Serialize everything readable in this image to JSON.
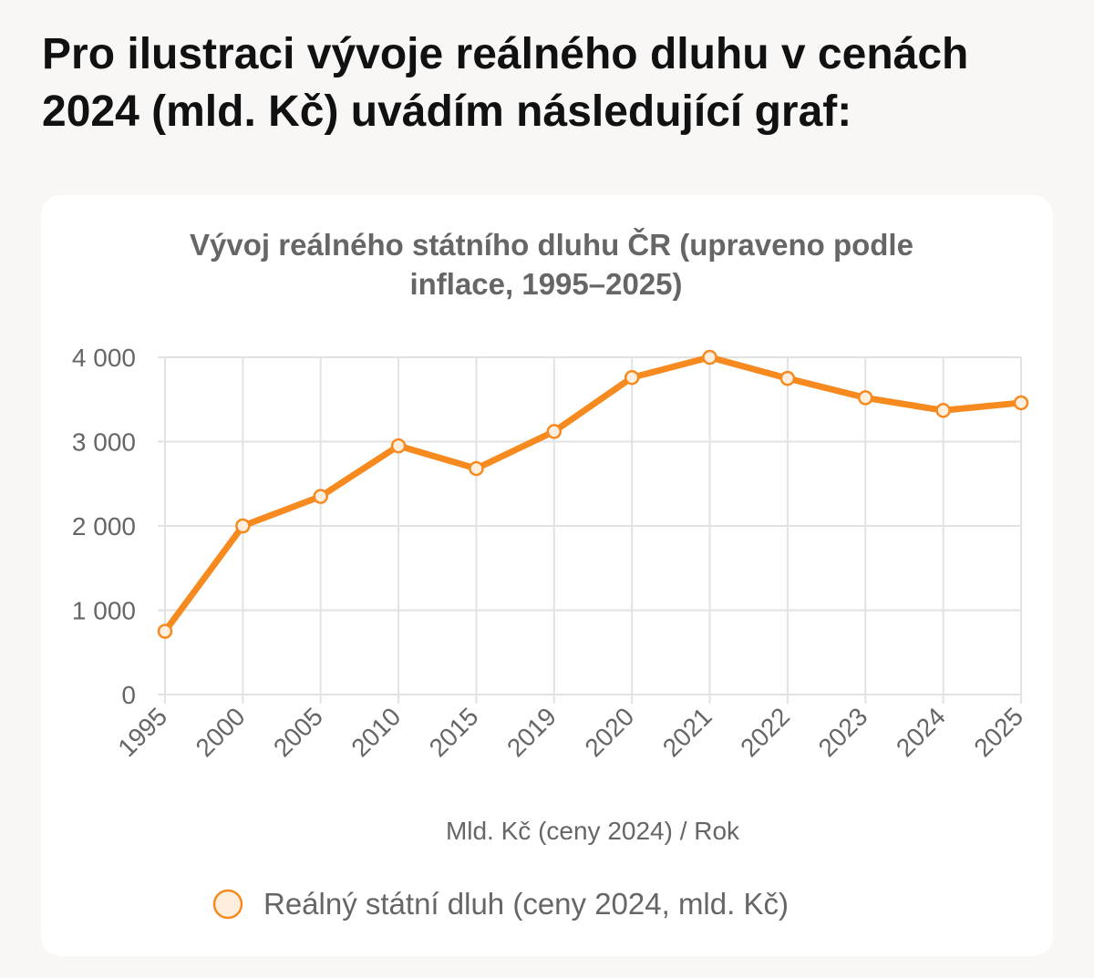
{
  "intro": {
    "text": "Pro ilustraci vývoje reálného dluhu v cenách 2024 (mld. Kč) uvádím následující graf:"
  },
  "chart_data": {
    "type": "line",
    "title": "Vývoj reálného státního dluhu ČR (upraveno podle inflace, 1995–2025)",
    "xlabel": "Mld. Kč (ceny 2024) / Rok",
    "ylabel": "",
    "categories": [
      "1995",
      "2000",
      "2005",
      "2010",
      "2015",
      "2019",
      "2020",
      "2021",
      "2022",
      "2023",
      "2024",
      "2025"
    ],
    "series": [
      {
        "name": "Reálný státní dluh (ceny 2024, mld. Kč)",
        "values": [
          750,
          2000,
          2350,
          2950,
          2680,
          3120,
          3760,
          4000,
          3750,
          3520,
          3370,
          3460
        ]
      }
    ],
    "ylim": [
      0,
      4000
    ],
    "yticks": [
      "0",
      "1 000",
      "2 000",
      "3 000",
      "4 000"
    ],
    "ytick_values": [
      0,
      1000,
      2000,
      3000,
      4000
    ],
    "grid": true,
    "legend_position": "bottom",
    "colors": {
      "line": "#f68a1e",
      "marker_fill": "#fdeedd",
      "grid": "#e2e2e2",
      "axis_text": "#666666",
      "title_text": "#666666"
    }
  }
}
